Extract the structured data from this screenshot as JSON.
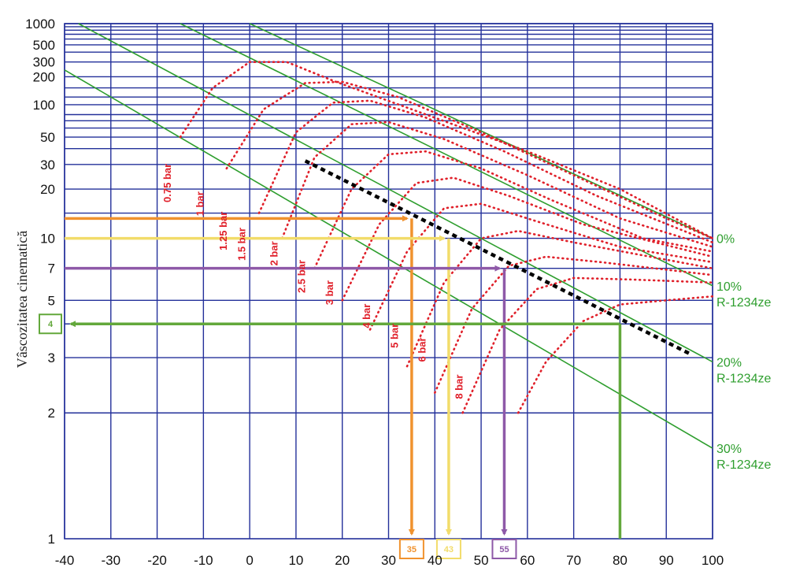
{
  "chart_data": {
    "type": "line",
    "title": "",
    "xlabel": "",
    "ylabel": "Vâscozitatea cinematică",
    "xlim": [
      -40,
      100
    ],
    "ylim": [
      1,
      1000
    ],
    "yscale": "log-log (Walther / ASTM D341)",
    "grid": true,
    "x_ticks": [
      -40,
      -30,
      -20,
      -10,
      0,
      10,
      20,
      30,
      40,
      50,
      60,
      70,
      80,
      90,
      100
    ],
    "x_tick_labels": [
      "-40",
      "-30",
      "-20",
      "-10",
      "0",
      "10",
      "20",
      "30",
      "40",
      "50",
      "60",
      "70",
      "80",
      "90",
      "100"
    ],
    "y_ticks": [
      1,
      2,
      3,
      5,
      7,
      10,
      20,
      30,
      50,
      100,
      200,
      300,
      500,
      1000
    ],
    "y_tick_labels": [
      "1",
      "2",
      "3",
      "5",
      "7",
      "10",
      "20",
      "30",
      "50",
      "100",
      "200",
      "300",
      "500",
      "1000"
    ],
    "y_grid": [
      2,
      3,
      4,
      5,
      7,
      10,
      14,
      20,
      30,
      40,
      50,
      60,
      70,
      80,
      100,
      120,
      150,
      200,
      300,
      400,
      500,
      600,
      700,
      800,
      900,
      1000
    ],
    "mixture_lines": [
      {
        "label": "0%",
        "label2": "",
        "points": [
          [
            0,
            1000
          ],
          [
            100,
            10
          ]
        ]
      },
      {
        "label": "10%",
        "label2": "R-1234ze",
        "points": [
          [
            -15,
            1000
          ],
          [
            100,
            5.8
          ]
        ]
      },
      {
        "label": "20%",
        "label2": "R-1234ze",
        "points": [
          [
            -37,
            1000
          ],
          [
            100,
            2.9
          ]
        ]
      },
      {
        "label": "30%",
        "label2": "R-1234ze",
        "points": [
          [
            -40,
            240
          ],
          [
            100,
            1.6
          ]
        ]
      }
    ],
    "pressure_curves": [
      {
        "label": "0.75 bar",
        "points": [
          [
            -15,
            50
          ],
          [
            -8,
            150
          ],
          [
            0,
            300
          ],
          [
            8,
            300
          ],
          [
            18,
            180
          ],
          [
            35,
            90
          ],
          [
            60,
            38
          ],
          [
            80,
            20
          ],
          [
            100,
            10
          ]
        ]
      },
      {
        "label": "1 bar",
        "points": [
          [
            -5,
            28
          ],
          [
            3,
            90
          ],
          [
            12,
            170
          ],
          [
            20,
            175
          ],
          [
            32,
            120
          ],
          [
            50,
            55
          ],
          [
            70,
            25
          ],
          [
            90,
            13
          ],
          [
            100,
            10
          ]
        ]
      },
      {
        "label": "1.25 bar",
        "points": [
          [
            2,
            14
          ],
          [
            10,
            55
          ],
          [
            18,
            105
          ],
          [
            26,
            110
          ],
          [
            38,
            75
          ],
          [
            55,
            38
          ],
          [
            75,
            18
          ],
          [
            100,
            9.5
          ]
        ]
      },
      {
        "label": "1.5 bar",
        "points": [
          [
            7,
            10
          ],
          [
            14,
            34
          ],
          [
            22,
            65
          ],
          [
            30,
            68
          ],
          [
            42,
            48
          ],
          [
            60,
            25
          ],
          [
            80,
            13
          ],
          [
            100,
            9
          ]
        ]
      },
      {
        "label": "2 bar",
        "points": [
          [
            14,
            7
          ],
          [
            22,
            20
          ],
          [
            30,
            36
          ],
          [
            38,
            38
          ],
          [
            50,
            28
          ],
          [
            65,
            17
          ],
          [
            85,
            10
          ],
          [
            100,
            8.5
          ]
        ]
      },
      {
        "label": "2.5 bar",
        "points": [
          [
            20,
            5
          ],
          [
            28,
            12
          ],
          [
            36,
            22
          ],
          [
            44,
            24
          ],
          [
            56,
            18
          ],
          [
            72,
            12
          ],
          [
            100,
            8
          ]
        ]
      },
      {
        "label": "3 bar",
        "points": [
          [
            26,
            3.8
          ],
          [
            34,
            8.5
          ],
          [
            42,
            15
          ],
          [
            50,
            16
          ],
          [
            62,
            12.5
          ],
          [
            80,
            9
          ],
          [
            100,
            7.5
          ]
        ]
      },
      {
        "label": "4 bar",
        "points": [
          [
            34,
            2.8
          ],
          [
            42,
            6
          ],
          [
            50,
            10
          ],
          [
            58,
            11
          ],
          [
            70,
            9.5
          ],
          [
            100,
            7
          ]
        ]
      },
      {
        "label": "5 bar",
        "points": [
          [
            40,
            2.3
          ],
          [
            48,
            4.6
          ],
          [
            56,
            7.2
          ],
          [
            64,
            8
          ],
          [
            76,
            7.5
          ],
          [
            100,
            6.5
          ]
        ]
      },
      {
        "label": "6 bar",
        "points": [
          [
            46,
            2
          ],
          [
            54,
            3.8
          ],
          [
            62,
            5.6
          ],
          [
            70,
            6.3
          ],
          [
            82,
            6.2
          ],
          [
            100,
            6
          ]
        ]
      },
      {
        "label": "8 bar",
        "points": [
          [
            58,
            2
          ],
          [
            64,
            2.9
          ],
          [
            72,
            4.1
          ],
          [
            80,
            4.8
          ],
          [
            90,
            5
          ],
          [
            100,
            5.2
          ]
        ]
      }
    ],
    "bar_labels": [
      {
        "text": "0.75 bar",
        "x": -17,
        "y": 22
      },
      {
        "text": "1 bar",
        "x": -10,
        "y": 16
      },
      {
        "text": "1.25 bar",
        "x": -5,
        "y": 11
      },
      {
        "text": "1.5 bar",
        "x": -1,
        "y": 9.3
      },
      {
        "text": "2 bar",
        "x": 6,
        "y": 8.3
      },
      {
        "text": "2.5 bar",
        "x": 12,
        "y": 6.4
      },
      {
        "text": "3 bar",
        "x": 18,
        "y": 5.4
      },
      {
        "text": "4 bar",
        "x": 26,
        "y": 4.3
      },
      {
        "text": "5 bar",
        "x": 32,
        "y": 3.6
      },
      {
        "text": "6 bar",
        "x": 38,
        "y": 3.2
      },
      {
        "text": "8 bar",
        "x": 46,
        "y": 2.4
      }
    ],
    "saturation_line": {
      "points": [
        [
          12,
          32
        ],
        [
          95,
          3.1
        ]
      ]
    },
    "annotations": [
      {
        "label": "35",
        "x": 35,
        "y": 13,
        "color": "#f0922e"
      },
      {
        "label": "43",
        "x": 43,
        "y": 10,
        "color": "#f2dc6a"
      },
      {
        "label": "55",
        "x": 55,
        "y": 7,
        "color": "#8e59a8"
      },
      {
        "label": "4",
        "x": 80,
        "y": 4,
        "color": "#63a83b"
      }
    ]
  }
}
